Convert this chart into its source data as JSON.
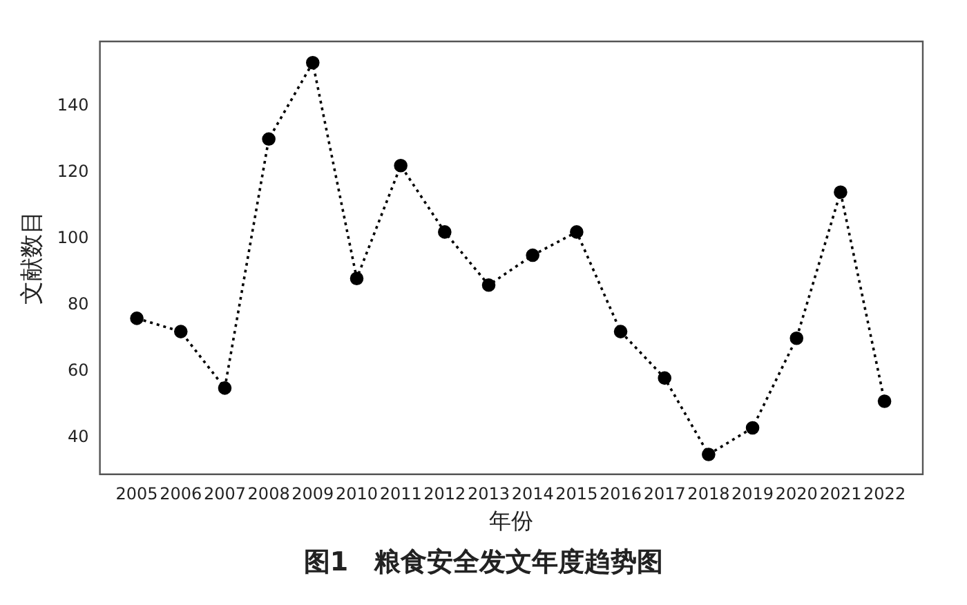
{
  "chart_data": {
    "type": "line",
    "xlabel": "年份",
    "ylabel": "文献数目",
    "annotations": [
      "图1　粮食安全发文年度趋势图"
    ],
    "x": [
      2005,
      2006,
      2007,
      2008,
      2009,
      2010,
      2011,
      2012,
      2013,
      2014,
      2015,
      2016,
      2017,
      2018,
      2019,
      2020,
      2021,
      2022
    ],
    "series": [
      {
        "color": "#000000",
        "values": [
          76,
          72,
          55,
          130,
          153,
          88,
          122,
          102,
          86,
          95,
          102,
          72,
          58,
          35,
          43,
          70,
          114,
          51
        ]
      }
    ],
    "xlim": [
      2004.16,
      2022.87
    ],
    "xticks": [
      2005,
      2006,
      2007,
      2008,
      2009,
      2010,
      2011,
      2012,
      2013,
      2014,
      2015,
      2016,
      2017,
      2018,
      2019,
      2020,
      2021,
      2022
    ],
    "ylim": [
      29,
      159.4
    ],
    "yticks": [
      40,
      60,
      80,
      100,
      120,
      140
    ],
    "grid": false,
    "legend": false,
    "marker": "circle",
    "line_style": "dotted"
  }
}
